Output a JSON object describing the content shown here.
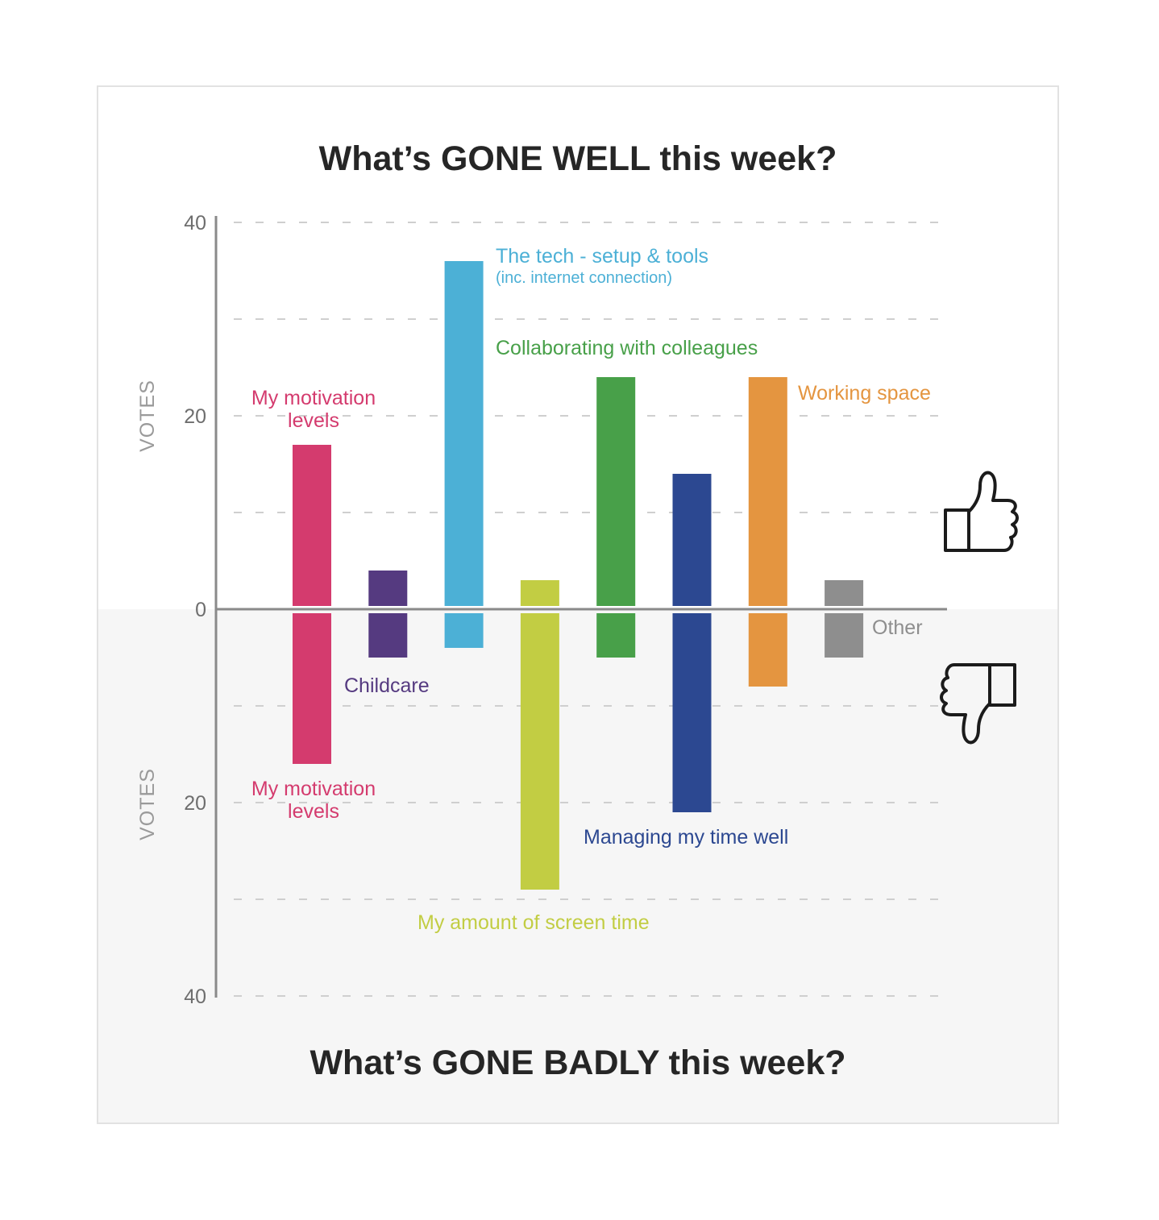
{
  "chart_data": {
    "type": "bar",
    "title_top": "What’s GONE WELL this week?",
    "title_bottom": "What’s GONE BADLY this week?",
    "ylabel_top": "VOTES",
    "ylabel_bottom": "VOTES",
    "ylim_top": [
      0,
      40
    ],
    "ylim_bottom": [
      0,
      40
    ],
    "ticks_top": [
      0,
      20,
      40
    ],
    "ticks_bottom": [
      20,
      40
    ],
    "grid": true,
    "categories": [
      "My motivation levels",
      "Childcare",
      "The tech - setup & tools",
      "My amount of screen time",
      "Collaborating with colleagues",
      "Managing my time well",
      "Working space",
      "Other"
    ],
    "colors": [
      "#d43b6e",
      "#553a80",
      "#4cb0d6",
      "#c2cd43",
      "#48a049",
      "#2c4891",
      "#e49540",
      "#8e8e8e"
    ],
    "series": [
      {
        "name": "What’s GONE WELL this week?",
        "values": [
          17,
          4,
          36,
          3,
          24,
          14,
          24,
          3
        ]
      },
      {
        "name": "What’s GONE BADLY this week?",
        "values": [
          16,
          5,
          4,
          29,
          5,
          21,
          8,
          5
        ]
      }
    ],
    "labels": [
      {
        "text": "My motivation",
        "sub": "levels",
        "bar": 0,
        "side": "top"
      },
      {
        "text": "The tech - setup & tools",
        "sub": "(inc. internet connection)",
        "bar": 2,
        "side": "top"
      },
      {
        "text": "Collaborating with colleagues",
        "bar": 4,
        "side": "top"
      },
      {
        "text": "Working space",
        "bar": 6,
        "side": "top"
      },
      {
        "text": "Other",
        "bar": 7,
        "side": "bottom"
      },
      {
        "text": "Childcare",
        "bar": 1,
        "side": "bottom"
      },
      {
        "text": "My motivation",
        "sub": "levels",
        "bar": 0,
        "side": "bottom"
      },
      {
        "text": "Managing my time well",
        "bar": 5,
        "side": "bottom"
      },
      {
        "text": "My amount of screen time",
        "bar": 3,
        "side": "bottom"
      }
    ],
    "icons": [
      "thumbs-up-icon",
      "thumbs-down-icon"
    ]
  }
}
